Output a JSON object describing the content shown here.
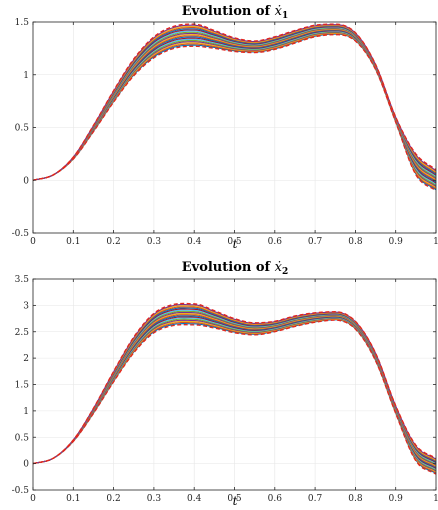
{
  "chart_data": [
    {
      "type": "line",
      "title_prefix": "Evolution of ",
      "title_symbol": "ẋ",
      "title_subscript": "1",
      "xlabel": "t",
      "xlim": [
        0,
        1
      ],
      "ylim": [
        -0.5,
        1.5
      ],
      "xticks": [
        0,
        0.1,
        0.2,
        0.3,
        0.4,
        0.5,
        0.6,
        0.7,
        0.8,
        0.9,
        1
      ],
      "xtick_labels": [
        "0",
        "0.1",
        "0.2",
        "0.3",
        "0.4",
        "0.5",
        "0.6",
        "0.7",
        "0.8",
        "0.9",
        "1"
      ],
      "yticks": [
        -0.5,
        0,
        0.5,
        1,
        1.5
      ],
      "ytick_labels": [
        "-0.5",
        "0",
        "0.5",
        "1",
        "1.5"
      ],
      "grid": true,
      "x": [
        0,
        0.05,
        0.1,
        0.15,
        0.2,
        0.25,
        0.3,
        0.35,
        0.4,
        0.45,
        0.5,
        0.55,
        0.6,
        0.65,
        0.7,
        0.75,
        0.8,
        0.85,
        0.9,
        0.95,
        1
      ],
      "upper_bound": [
        0,
        0.05,
        0.22,
        0.52,
        0.85,
        1.15,
        1.36,
        1.46,
        1.48,
        1.42,
        1.35,
        1.32,
        1.36,
        1.42,
        1.47,
        1.48,
        1.4,
        1.1,
        0.6,
        0.25,
        0.1
      ],
      "lower_bound": [
        0,
        0.05,
        0.2,
        0.46,
        0.74,
        0.99,
        1.16,
        1.25,
        1.27,
        1.25,
        1.22,
        1.21,
        1.24,
        1.3,
        1.36,
        1.38,
        1.32,
        1.05,
        0.55,
        0.05,
        -0.1
      ],
      "n_samples": 18,
      "bound_color": "#e3261c",
      "sample_colors": [
        "#0072bd",
        "#d95319",
        "#edb120",
        "#7e2f8e",
        "#77ac30",
        "#4dbeee",
        "#a2142f"
      ]
    },
    {
      "type": "line",
      "title_prefix": "Evolution of ",
      "title_symbol": "ẋ",
      "title_subscript": "2",
      "xlabel": "t",
      "xlim": [
        0,
        1
      ],
      "ylim": [
        -0.5,
        3.5
      ],
      "xticks": [
        0,
        0.1,
        0.2,
        0.3,
        0.4,
        0.5,
        0.6,
        0.7,
        0.8,
        0.9,
        1
      ],
      "xtick_labels": [
        "0",
        "0.1",
        "0.2",
        "0.3",
        "0.4",
        "0.5",
        "0.6",
        "0.7",
        "0.8",
        "0.9",
        "1"
      ],
      "yticks": [
        -0.5,
        0,
        0.5,
        1,
        1.5,
        2,
        2.5,
        3,
        3.5
      ],
      "ytick_labels": [
        "-0.5",
        "0",
        "0.5",
        "1",
        "1.5",
        "2",
        "2.5",
        "3",
        "3.5"
      ],
      "grid": true,
      "x": [
        0,
        0.05,
        0.1,
        0.15,
        0.2,
        0.25,
        0.3,
        0.35,
        0.4,
        0.45,
        0.5,
        0.55,
        0.6,
        0.65,
        0.7,
        0.75,
        0.8,
        0.85,
        0.9,
        0.95,
        1
      ],
      "upper_bound": [
        0,
        0.1,
        0.45,
        1.05,
        1.75,
        2.4,
        2.85,
        3.02,
        3.03,
        2.9,
        2.75,
        2.67,
        2.7,
        2.8,
        2.86,
        2.88,
        2.7,
        2.1,
        1.1,
        0.35,
        0.1
      ],
      "lower_bound": [
        0,
        0.1,
        0.42,
        0.95,
        1.55,
        2.1,
        2.48,
        2.62,
        2.63,
        2.57,
        2.48,
        2.44,
        2.5,
        2.6,
        2.68,
        2.72,
        2.55,
        1.95,
        0.95,
        0.05,
        -0.2
      ],
      "n_samples": 18,
      "bound_color": "#e3261c",
      "sample_colors": [
        "#0072bd",
        "#d95319",
        "#edb120",
        "#7e2f8e",
        "#77ac30",
        "#4dbeee",
        "#a2142f"
      ]
    }
  ]
}
